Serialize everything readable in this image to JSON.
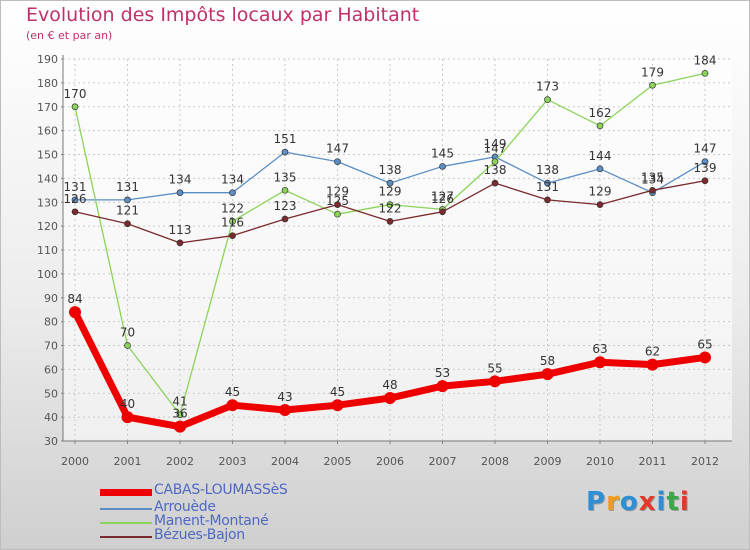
{
  "title": "Evolution des Impôts locaux par Habitant",
  "subtitle": "(en € et par an)",
  "logo": {
    "letters": [
      "P",
      "r",
      "o",
      "x",
      "i",
      "t",
      "i"
    ],
    "colors": [
      "#2f8fd6",
      "#f39b1c",
      "#2f8fd6",
      "#e23a2a",
      "#2f8fd6",
      "#3aa84a",
      "#e23a2a"
    ]
  },
  "chart_data": {
    "type": "line",
    "x": [
      "2000",
      "2001",
      "2002",
      "2003",
      "2004",
      "2005",
      "2006",
      "2007",
      "2008",
      "2009",
      "2010",
      "2011",
      "2012"
    ],
    "ylim": [
      30,
      190
    ],
    "yticks": [
      30,
      40,
      50,
      60,
      70,
      80,
      90,
      100,
      110,
      120,
      130,
      140,
      150,
      160,
      170,
      180,
      190
    ],
    "grid": true,
    "legend_position": "bottom-left",
    "series": [
      {
        "name": "Arrouède",
        "color": "#5b8ec4",
        "width": 1.3,
        "values": [
          131,
          131,
          134,
          134,
          151,
          147,
          138,
          145,
          149,
          138,
          144,
          134,
          147
        ]
      },
      {
        "name": "Manent-Montané",
        "color": "#8cd35a",
        "width": 1.3,
        "values": [
          170,
          70,
          41,
          122,
          135,
          125,
          129,
          127,
          147,
          173,
          162,
          179,
          184
        ],
        "labels": [
          170,
          70,
          41,
          122,
          135,
          125,
          129,
          127,
          147,
          173,
          162,
          179,
          184
        ]
      },
      {
        "name": "Bézues-Bajon",
        "color": "#7b2a2e",
        "width": 1.3,
        "values": [
          126,
          121,
          113,
          116,
          123,
          129,
          122,
          126,
          138,
          131,
          129,
          135,
          139
        ]
      },
      {
        "name": "CABAS-LOUMASSèS",
        "color": "#ee0000",
        "width": 7,
        "values": [
          84,
          40,
          36,
          45,
          43,
          45,
          48,
          53,
          55,
          58,
          63,
          62,
          65
        ]
      }
    ],
    "point_labels": {
      "Arrouède": [
        "131",
        "131",
        "134",
        "134",
        "151",
        "147",
        "138",
        "145",
        "149",
        "138",
        "144",
        "134",
        "147"
      ],
      "Manent-Montané": [
        "170",
        "70",
        "41",
        "122",
        "135",
        "125",
        "129",
        "127",
        "147",
        "173",
        "162",
        "179",
        "184"
      ],
      "Bézues-Bajon": [
        "126",
        "121",
        "113",
        "116",
        "123",
        "129",
        "122",
        "126",
        "138",
        "131",
        "129",
        "135",
        "139"
      ],
      "CABAS-LOUMASSèS": [
        "84",
        "40",
        "36",
        "45",
        "43",
        "45",
        "48",
        "53",
        "55",
        "58",
        "63",
        "62",
        "65"
      ]
    }
  },
  "legend": [
    {
      "label": "CABAS-LOUMASSèS",
      "color": "#ee0000",
      "thick": true
    },
    {
      "label": "Arrouède",
      "color": "#5b8ec4",
      "thick": false
    },
    {
      "label": "Manent-Montané",
      "color": "#8cd35a",
      "thick": false
    },
    {
      "label": "Bézues-Bajon",
      "color": "#7b2a2e",
      "thick": false
    }
  ]
}
